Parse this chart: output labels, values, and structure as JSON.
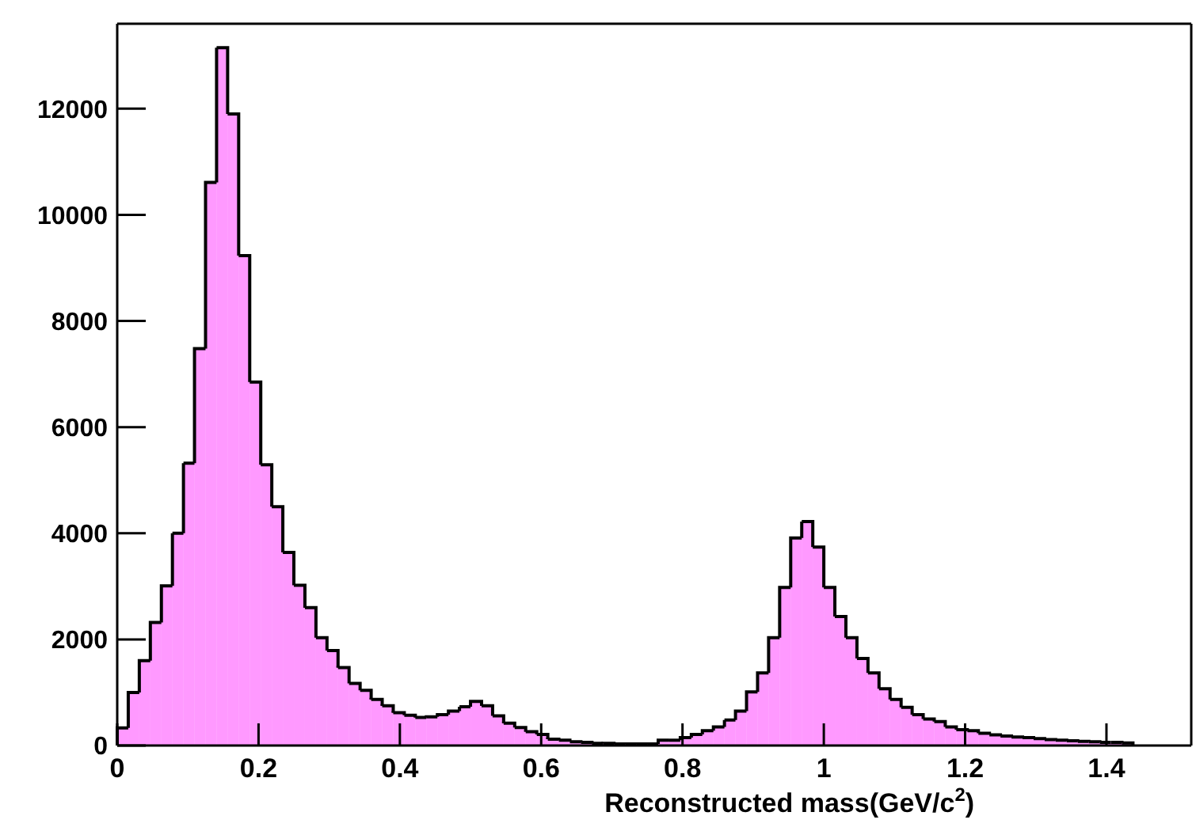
{
  "chart_data": {
    "type": "histogram",
    "xlabel": "Reconstructed mass(GeV/c$^{2}$)",
    "bins": [
      0,
      0.015625,
      0.03125,
      0.046875,
      0.0625,
      0.078125,
      0.09375,
      0.109375,
      0.125,
      0.140625,
      0.15625,
      0.171875,
      0.1875,
      0.203125,
      0.21875,
      0.234375,
      0.25,
      0.265625,
      0.28125,
      0.296875,
      0.3125,
      0.328125,
      0.34375,
      0.359375,
      0.375,
      0.390625,
      0.40625,
      0.421875,
      0.4375,
      0.453125,
      0.46875,
      0.484375,
      0.5,
      0.515625,
      0.53125,
      0.546875,
      0.5625,
      0.578125,
      0.59375,
      0.609375,
      0.625,
      0.640625,
      0.65625,
      0.671875,
      0.6875,
      0.703125,
      0.71875,
      0.734375,
      0.75,
      0.765625,
      0.78125,
      0.796875,
      0.8125,
      0.828125,
      0.84375,
      0.859375,
      0.875,
      0.890625,
      0.90625,
      0.921875,
      0.9375,
      0.953125,
      0.96875,
      0.984375,
      1,
      1.015625,
      1.03125,
      1.046875,
      1.0625,
      1.078125,
      1.09375,
      1.109375,
      1.125,
      1.140625,
      1.15625,
      1.171875,
      1.1875,
      1.203125,
      1.21875,
      1.234375,
      1.25,
      1.265625,
      1.28125,
      1.296875,
      1.3125,
      1.328125,
      1.34375,
      1.359375,
      1.375,
      1.390625,
      1.40625,
      1.421875,
      1.4375,
      1.453125,
      1.46875,
      1.484375,
      1.5
    ],
    "values": [
      330,
      1000,
      1600,
      2320,
      3010,
      4000,
      5320,
      7480,
      10610,
      13150,
      11900,
      9230,
      6850,
      5290,
      4500,
      3640,
      3020,
      2600,
      2030,
      1790,
      1470,
      1170,
      1040,
      870,
      750,
      620,
      570,
      530,
      540,
      580,
      650,
      730,
      830,
      750,
      560,
      420,
      340,
      260,
      210,
      120,
      100,
      70,
      60,
      40,
      40,
      30,
      30,
      30,
      30,
      100,
      100,
      150,
      210,
      280,
      350,
      480,
      650,
      1010,
      1370,
      2030,
      2980,
      3910,
      4220,
      3740,
      2980,
      2430,
      2030,
      1640,
      1370,
      1070,
      870,
      720,
      580,
      500,
      450,
      350,
      300,
      280,
      230,
      200,
      180,
      160,
      150,
      130,
      110,
      100,
      90,
      80,
      70,
      60,
      60,
      50,
      0,
      0,
      0,
      0
    ],
    "color": "#ff00ff",
    "xlim": [
      0,
      1.52
    ],
    "xticks": [
      0,
      0.2,
      0.4,
      0.6,
      0.8,
      1,
      1.2,
      1.4
    ],
    "ylim": [
      0,
      13600
    ],
    "yticks": [
      0,
      2000,
      4000,
      6000,
      8000,
      10000,
      12000
    ],
    "grid": false
  }
}
